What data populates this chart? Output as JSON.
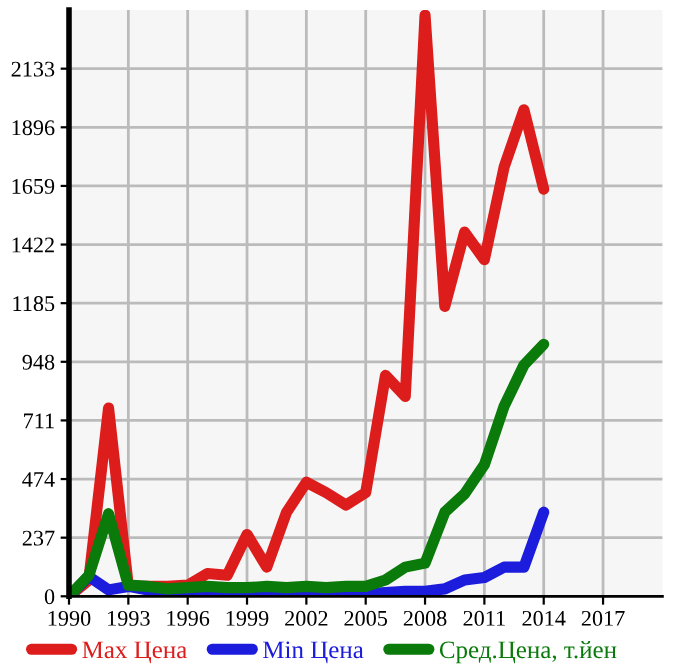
{
  "chart_data": {
    "type": "line",
    "x": [
      1990,
      1991,
      1992,
      1993,
      1994,
      1995,
      1996,
      1997,
      1998,
      1999,
      2000,
      2001,
      2002,
      2003,
      2004,
      2005,
      2006,
      2007,
      2008,
      2009,
      2010,
      2011,
      2012,
      2013,
      2014
    ],
    "series": [
      {
        "name": "Max Цена",
        "color": "#dd1c1c",
        "values": [
          0,
          65,
          761,
          40,
          40,
          40,
          45,
          92,
          85,
          250,
          118,
          340,
          461,
          419,
          369,
          419,
          893,
          808,
          2349,
          1172,
          1472,
          1361,
          1736,
          1967,
          1646
        ]
      },
      {
        "name": "Min Цена",
        "color": "#1c1cdd",
        "values": [
          0,
          80,
          26,
          40,
          25,
          10,
          10,
          15,
          10,
          10,
          10,
          10,
          10,
          10,
          10,
          10,
          15,
          20,
          20,
          30,
          66,
          76,
          118,
          118,
          340
        ]
      },
      {
        "name": "Сред.Цена, т.йен",
        "color": "#0a7a0a",
        "values": [
          0,
          84,
          334,
          45,
          40,
          30,
          35,
          40,
          35,
          35,
          40,
          35,
          40,
          35,
          40,
          40,
          66,
          118,
          134,
          340,
          414,
          532,
          769,
          935,
          1019
        ]
      }
    ],
    "xlim": [
      1990,
      2020
    ],
    "xticks": [
      1990,
      1993,
      1996,
      1999,
      2002,
      2005,
      2008,
      2011,
      2014,
      2017
    ],
    "ylim": [
      0,
      2370
    ],
    "yticks": [
      0,
      237,
      474,
      711,
      948,
      1185,
      1422,
      1659,
      1896,
      2133
    ],
    "grid": true,
    "legend": "bottom",
    "marker": "none",
    "line_style": "solid"
  }
}
